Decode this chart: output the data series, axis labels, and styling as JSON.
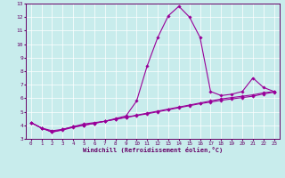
{
  "xlabel": "Windchill (Refroidissement éolien,°C)",
  "background_color": "#c8ecec",
  "line_color": "#990099",
  "text_color": "#660066",
  "xlim": [
    -0.5,
    23.5
  ],
  "ylim": [
    3,
    13
  ],
  "xticks": [
    0,
    1,
    2,
    3,
    4,
    5,
    6,
    7,
    8,
    9,
    10,
    11,
    12,
    13,
    14,
    15,
    16,
    17,
    18,
    19,
    20,
    21,
    22,
    23
  ],
  "yticks": [
    3,
    4,
    5,
    6,
    7,
    8,
    9,
    10,
    11,
    12,
    13
  ],
  "series1": [
    [
      0,
      4.2
    ],
    [
      1,
      3.8
    ],
    [
      2,
      3.5
    ],
    [
      3,
      3.7
    ],
    [
      4,
      3.9
    ],
    [
      5,
      4.1
    ],
    [
      6,
      4.2
    ],
    [
      7,
      4.3
    ],
    [
      8,
      4.5
    ],
    [
      9,
      4.7
    ],
    [
      10,
      5.8
    ],
    [
      11,
      8.4
    ],
    [
      12,
      10.5
    ],
    [
      13,
      12.1
    ],
    [
      14,
      12.8
    ],
    [
      15,
      12.0
    ],
    [
      16,
      10.5
    ],
    [
      17,
      6.5
    ],
    [
      18,
      6.2
    ],
    [
      19,
      6.3
    ],
    [
      20,
      6.5
    ],
    [
      21,
      7.5
    ],
    [
      22,
      6.8
    ],
    [
      23,
      6.5
    ]
  ],
  "series2": [
    [
      0,
      4.2
    ],
    [
      1,
      3.8
    ],
    [
      2,
      3.6
    ],
    [
      3,
      3.7
    ],
    [
      4,
      3.9
    ],
    [
      5,
      4.0
    ],
    [
      6,
      4.15
    ],
    [
      7,
      4.3
    ],
    [
      8,
      4.45
    ],
    [
      9,
      4.6
    ],
    [
      10,
      4.75
    ],
    [
      11,
      4.9
    ],
    [
      12,
      5.05
    ],
    [
      13,
      5.2
    ],
    [
      14,
      5.35
    ],
    [
      15,
      5.5
    ],
    [
      16,
      5.65
    ],
    [
      17,
      5.8
    ],
    [
      18,
      5.95
    ],
    [
      19,
      6.05
    ],
    [
      20,
      6.15
    ],
    [
      21,
      6.25
    ],
    [
      22,
      6.4
    ],
    [
      23,
      6.5
    ]
  ],
  "series3": [
    [
      0,
      4.2
    ],
    [
      1,
      3.8
    ],
    [
      2,
      3.5
    ],
    [
      3,
      3.65
    ],
    [
      4,
      3.85
    ],
    [
      5,
      4.0
    ],
    [
      6,
      4.15
    ],
    [
      7,
      4.3
    ],
    [
      8,
      4.45
    ],
    [
      9,
      4.58
    ],
    [
      10,
      4.72
    ],
    [
      11,
      4.85
    ],
    [
      12,
      5.0
    ],
    [
      13,
      5.15
    ],
    [
      14,
      5.3
    ],
    [
      15,
      5.45
    ],
    [
      16,
      5.6
    ],
    [
      17,
      5.72
    ],
    [
      18,
      5.85
    ],
    [
      19,
      5.95
    ],
    [
      20,
      6.05
    ],
    [
      21,
      6.15
    ],
    [
      22,
      6.32
    ],
    [
      23,
      6.45
    ]
  ]
}
